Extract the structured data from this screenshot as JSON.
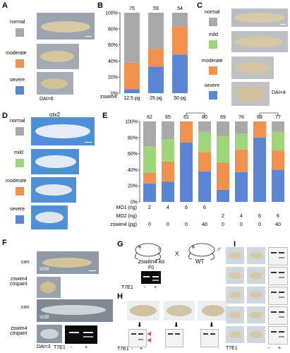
{
  "colors": {
    "normal": "#a9a9a9",
    "mild": "#9fd67c",
    "moderate": "#f2914f",
    "severe": "#5b86d6"
  },
  "panelA": {
    "letter": "A",
    "labels": [
      "normal",
      "moderate",
      "severe"
    ],
    "dai": "DAI=6"
  },
  "panelB": {
    "letter": "B",
    "row_label": "zswim4"
  },
  "panelC": {
    "letter": "C",
    "labels": [
      "normal",
      "mild",
      "moderate",
      "severe"
    ],
    "dai": "DAI=4"
  },
  "panelD": {
    "letter": "D",
    "title": "otx2",
    "labels": [
      "normal",
      "mild",
      "moderate",
      "severe"
    ]
  },
  "panelE": {
    "letter": "E",
    "row_labels": [
      "MO1 (ng)",
      "MO2 (ng)",
      "zswim4 (pg)"
    ],
    "mo1": [
      "2",
      "4",
      "6",
      "6",
      "",
      "",
      "",
      ""
    ],
    "mo2": [
      "",
      "",
      "",
      "",
      "2",
      "4",
      "6",
      "6"
    ],
    "zswim4": [
      "0",
      "0",
      "0",
      "40",
      "0",
      "0",
      "0",
      "40"
    ],
    "sig1": "**",
    "sig2": "**"
  },
  "panelF": {
    "letter": "F",
    "labels": [
      "con",
      "zswim4\ncrispant",
      "con",
      "zswim4\ncrispant"
    ],
    "stages": [
      "st28",
      "st38"
    ],
    "dai": "DAI=3",
    "t7e1": "T7E1",
    "minus": "-",
    "plus": "+"
  },
  "panelG": {
    "letter": "G",
    "ko": "zswim4 ko",
    "cross": "X",
    "wt": "WT",
    "f0": "F0",
    "female": "♀",
    "male": "♂",
    "t7e1": "T7E1",
    "minus": "-",
    "plus": "+"
  },
  "panelH": {
    "letter": "H",
    "t7e1": "T7E1",
    "minus": "-",
    "plus": "+"
  },
  "panelI": {
    "letter": "I",
    "t7e1": "T7E1",
    "minus": "-",
    "plus": "+"
  },
  "chart_data": [
    {
      "type": "bar",
      "stacked": true,
      "panel": "B",
      "categories": [
        "12.5 pg",
        "25 pg",
        "50 pg"
      ],
      "n": [
        "75",
        "59",
        "54"
      ],
      "series": [
        {
          "name": "severe",
          "values": [
            5,
            33,
            48
          ]
        },
        {
          "name": "moderate",
          "values": [
            33,
            22,
            35
          ]
        },
        {
          "name": "normal",
          "values": [
            62,
            45,
            17
          ]
        }
      ],
      "yticks": [
        "0%",
        "20%",
        "40%",
        "60%",
        "80%",
        "100%"
      ],
      "ylim": [
        0,
        100
      ]
    },
    {
      "type": "bar",
      "stacked": true,
      "panel": "E",
      "categories": [
        "1",
        "2",
        "3",
        "4",
        "5",
        "6",
        "7",
        "8"
      ],
      "n": [
        "62",
        "65",
        "61",
        "80",
        "69",
        "76",
        "68",
        "77"
      ],
      "series": [
        {
          "name": "severe",
          "values": [
            23,
            25,
            74,
            38,
            15,
            37,
            80,
            40
          ]
        },
        {
          "name": "moderate",
          "values": [
            13,
            25,
            26,
            24,
            34,
            28,
            20,
            24
          ]
        },
        {
          "name": "mild",
          "values": [
            33,
            28,
            0,
            25,
            33,
            20,
            0,
            23
          ]
        },
        {
          "name": "normal",
          "values": [
            31,
            22,
            0,
            13,
            18,
            15,
            0,
            13
          ]
        }
      ],
      "yticks": [
        "0%",
        "20%",
        "40%",
        "60%",
        "80%",
        "100%"
      ],
      "ylim": [
        0,
        100
      ]
    }
  ]
}
